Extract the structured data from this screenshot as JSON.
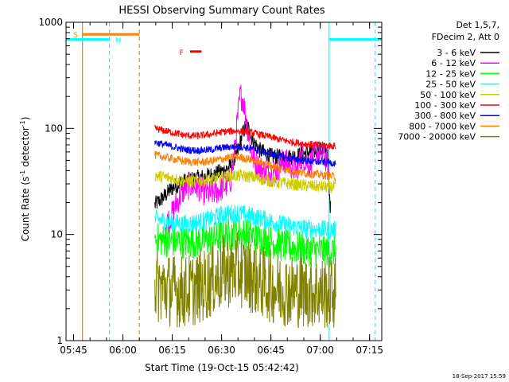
{
  "chart_data": {
    "type": "line",
    "title": "HESSI Observing Summary Count Rates",
    "xlabel": "Start Time (19-Oct-15 05:42:42)",
    "ylabel_main": "Count Rate (s",
    "ylabel_sup1": "-1",
    "ylabel_mid": " detector",
    "ylabel_sup2": "-1",
    "ylabel_end": ")",
    "yscale": "log",
    "ylim": [
      1,
      1000
    ],
    "xlim_minutes": [
      0,
      96
    ],
    "x_start": "05:42:42",
    "x_ticks": [
      {
        "label": "05:45",
        "min": 2.3
      },
      {
        "label": "06:00",
        "min": 17.3
      },
      {
        "label": "06:15",
        "min": 32.3
      },
      {
        "label": "06:30",
        "min": 47.3
      },
      {
        "label": "06:45",
        "min": 62.3
      },
      {
        "label": "07:00",
        "min": 77.3
      },
      {
        "label": "07:15",
        "min": 92.3
      }
    ],
    "y_ticks": [
      {
        "label": "1",
        "value": 1
      },
      {
        "label": "10",
        "value": 10
      },
      {
        "label": "100",
        "value": 100
      },
      {
        "label": "1000",
        "value": 1000
      }
    ],
    "legend_header": [
      "Det 1,5,7,",
      "FDecim 2, Att 0"
    ],
    "legend_position": "right",
    "series": [
      {
        "name": "3 - 6 keV",
        "color": "#000000",
        "segments": [
          {
            "start": 27.0,
            "end": 80.5,
            "knots": [
              [
                27,
                19
              ],
              [
                30,
                23
              ],
              [
                32,
                27
              ],
              [
                35,
                31
              ],
              [
                38,
                33
              ],
              [
                42,
                35
              ],
              [
                45,
                37
              ],
              [
                48,
                40
              ],
              [
                50,
                44
              ],
              [
                52,
                55
              ],
              [
                53,
                75
              ],
              [
                54,
                95
              ],
              [
                55,
                110
              ],
              [
                56,
                90
              ],
              [
                57,
                75
              ],
              [
                59,
                62
              ],
              [
                62,
                55
              ],
              [
                66,
                53
              ],
              [
                70,
                55
              ],
              [
                74,
                60
              ],
              [
                78,
                63
              ],
              [
                79.5,
                62
              ],
              [
                80,
                24
              ],
              [
                80.5,
                17
              ]
            ],
            "noise": 0.08
          }
        ]
      },
      {
        "name": "6 - 12 keV",
        "color": "#ff00ff",
        "segments": [
          {
            "start": 30.0,
            "end": 80.0,
            "knots": [
              [
                30,
                12
              ],
              [
                32,
                15
              ],
              [
                34,
                21
              ],
              [
                36,
                27
              ],
              [
                38,
                29
              ],
              [
                40,
                28
              ],
              [
                42,
                25
              ],
              [
                44,
                24
              ],
              [
                46,
                26
              ],
              [
                48,
                28
              ],
              [
                50,
                32
              ],
              [
                51,
                50
              ],
              [
                52,
                110
              ],
              [
                53,
                210
              ],
              [
                54,
                180
              ],
              [
                55,
                110
              ],
              [
                56,
                70
              ],
              [
                57,
                52
              ],
              [
                58,
                45
              ],
              [
                60,
                40
              ],
              [
                62,
                38
              ],
              [
                64,
                40
              ],
              [
                66,
                50
              ],
              [
                68,
                46
              ],
              [
                70,
                40
              ],
              [
                72,
                55
              ],
              [
                74,
                45
              ],
              [
                76,
                60
              ],
              [
                78,
                55
              ],
              [
                79.5,
                50
              ],
              [
                80,
                28
              ]
            ],
            "noise": 0.13
          }
        ]
      },
      {
        "name": "12 - 25 keV",
        "color": "#00ff00",
        "segments": [
          {
            "start": 27.0,
            "end": 82.0,
            "knots": [
              [
                27,
                9
              ],
              [
                32,
                8.7
              ],
              [
                36,
                8.4
              ],
              [
                40,
                8.5
              ],
              [
                44,
                9.0
              ],
              [
                48,
                9.8
              ],
              [
                52,
                10.3
              ],
              [
                56,
                9.8
              ],
              [
                60,
                9.0
              ],
              [
                64,
                8.2
              ],
              [
                68,
                7.6
              ],
              [
                72,
                7.3
              ],
              [
                76,
                7.1
              ],
              [
                79,
                7.0
              ],
              [
                82,
                7.0
              ]
            ],
            "noise": 0.16
          }
        ]
      },
      {
        "name": "25 - 50 keV",
        "color": "#00ffff",
        "segments": [
          {
            "start": 27.0,
            "end": 82.0,
            "knots": [
              [
                27,
                14
              ],
              [
                32,
                13
              ],
              [
                36,
                12.5
              ],
              [
                40,
                13
              ],
              [
                44,
                14
              ],
              [
                48,
                15.5
              ],
              [
                52,
                16
              ],
              [
                56,
                15
              ],
              [
                60,
                14
              ],
              [
                64,
                12.8
              ],
              [
                68,
                12
              ],
              [
                72,
                11.5
              ],
              [
                76,
                11.2
              ],
              [
                79,
                11
              ],
              [
                82,
                11
              ]
            ],
            "noise": 0.09
          }
        ]
      },
      {
        "name": "50 - 100 keV",
        "color": "#cccc00",
        "segments": [
          {
            "start": 27.0,
            "end": 82.0,
            "knots": [
              [
                27,
                36
              ],
              [
                32,
                34
              ],
              [
                36,
                32
              ],
              [
                40,
                32
              ],
              [
                44,
                33
              ],
              [
                48,
                35
              ],
              [
                52,
                36
              ],
              [
                56,
                35
              ],
              [
                60,
                33
              ],
              [
                64,
                31
              ],
              [
                68,
                30
              ],
              [
                72,
                29
              ],
              [
                76,
                28.5
              ],
              [
                79,
                28
              ],
              [
                82,
                28
              ]
            ],
            "noise": 0.06
          }
        ]
      },
      {
        "name": "100 - 300 keV",
        "color": "#ff0000",
        "segments": [
          {
            "start": 27.0,
            "end": 82.0,
            "knots": [
              [
                27,
                100
              ],
              [
                32,
                92
              ],
              [
                36,
                86
              ],
              [
                40,
                85
              ],
              [
                44,
                88
              ],
              [
                48,
                93
              ],
              [
                52,
                95
              ],
              [
                56,
                92
              ],
              [
                60,
                86
              ],
              [
                64,
                80
              ],
              [
                68,
                75
              ],
              [
                72,
                72
              ],
              [
                76,
                70
              ],
              [
                79,
                69
              ],
              [
                82,
                68
              ]
            ],
            "noise": 0.035
          }
        ]
      },
      {
        "name": "300 - 800 keV",
        "color": "#0000ff",
        "segments": [
          {
            "start": 27.0,
            "end": 82.0,
            "knots": [
              [
                27,
                74
              ],
              [
                32,
                68
              ],
              [
                36,
                63
              ],
              [
                40,
                62
              ],
              [
                44,
                63
              ],
              [
                48,
                66
              ],
              [
                52,
                68
              ],
              [
                56,
                65
              ],
              [
                60,
                60
              ],
              [
                64,
                56
              ],
              [
                68,
                52
              ],
              [
                72,
                50
              ],
              [
                76,
                48.5
              ],
              [
                79,
                48
              ],
              [
                82,
                47
              ]
            ],
            "noise": 0.035
          }
        ]
      },
      {
        "name": "800 - 7000 keV",
        "color": "#ff8000",
        "segments": [
          {
            "start": 27.0,
            "end": 82.0,
            "knots": [
              [
                27,
                56
              ],
              [
                32,
                52
              ],
              [
                36,
                49
              ],
              [
                40,
                48
              ],
              [
                44,
                49
              ],
              [
                48,
                52
              ],
              [
                52,
                54
              ],
              [
                56,
                51
              ],
              [
                60,
                47
              ],
              [
                64,
                43
              ],
              [
                68,
                40
              ],
              [
                72,
                38
              ],
              [
                76,
                37
              ],
              [
                79,
                36
              ],
              [
                82,
                35
              ]
            ],
            "noise": 0.04
          }
        ]
      },
      {
        "name": "7000 - 20000 keV",
        "color": "#808000",
        "segments": [
          {
            "start": 27.0,
            "end": 82.0,
            "knots": [
              [
                27,
                3.3
              ],
              [
                32,
                3.0
              ],
              [
                36,
                2.9
              ],
              [
                40,
                3.1
              ],
              [
                44,
                3.6
              ],
              [
                48,
                4.4
              ],
              [
                52,
                4.7
              ],
              [
                56,
                4.1
              ],
              [
                60,
                3.5
              ],
              [
                64,
                3.1
              ],
              [
                68,
                3.0
              ],
              [
                72,
                2.9
              ],
              [
                76,
                2.9
              ],
              [
                79,
                2.8
              ],
              [
                82,
                2.8
              ]
            ],
            "noise": 0.35
          }
        ]
      }
    ],
    "flags": [
      {
        "code": "S",
        "color": "#ff8000",
        "bar_start": 5.0,
        "bar_end": 22.3,
        "level": 770,
        "label_min": 2.2
      },
      {
        "code": "N",
        "color": "#00ffff",
        "bar_start": 0.0,
        "bar_end": 13.2,
        "level": 690,
        "label_min": 15.0
      },
      {
        "code": "N",
        "color": "#00ffff",
        "bar_start": 80.0,
        "bar_end": 96.0,
        "level": 690,
        "label_min": null
      },
      {
        "code": "F",
        "color": "#ff0000",
        "bar_start": 37.7,
        "bar_end": 41.2,
        "level": 530,
        "label_min": 34.5
      }
    ],
    "vlines": [
      {
        "min": 5.0,
        "color": "#ff8000",
        "style": "solid"
      },
      {
        "min": 13.2,
        "color": "#00ffff",
        "style": "dashed"
      },
      {
        "min": 22.3,
        "color": "#ff8000",
        "style": "dashed"
      },
      {
        "min": 80.0,
        "color": "#00ffff",
        "style": "solid"
      },
      {
        "min": 94.0,
        "color": "#00ffff",
        "style": "dashed"
      }
    ],
    "grid": false
  },
  "footer": {
    "timestamp": "18-Sep-2017 15:59"
  }
}
